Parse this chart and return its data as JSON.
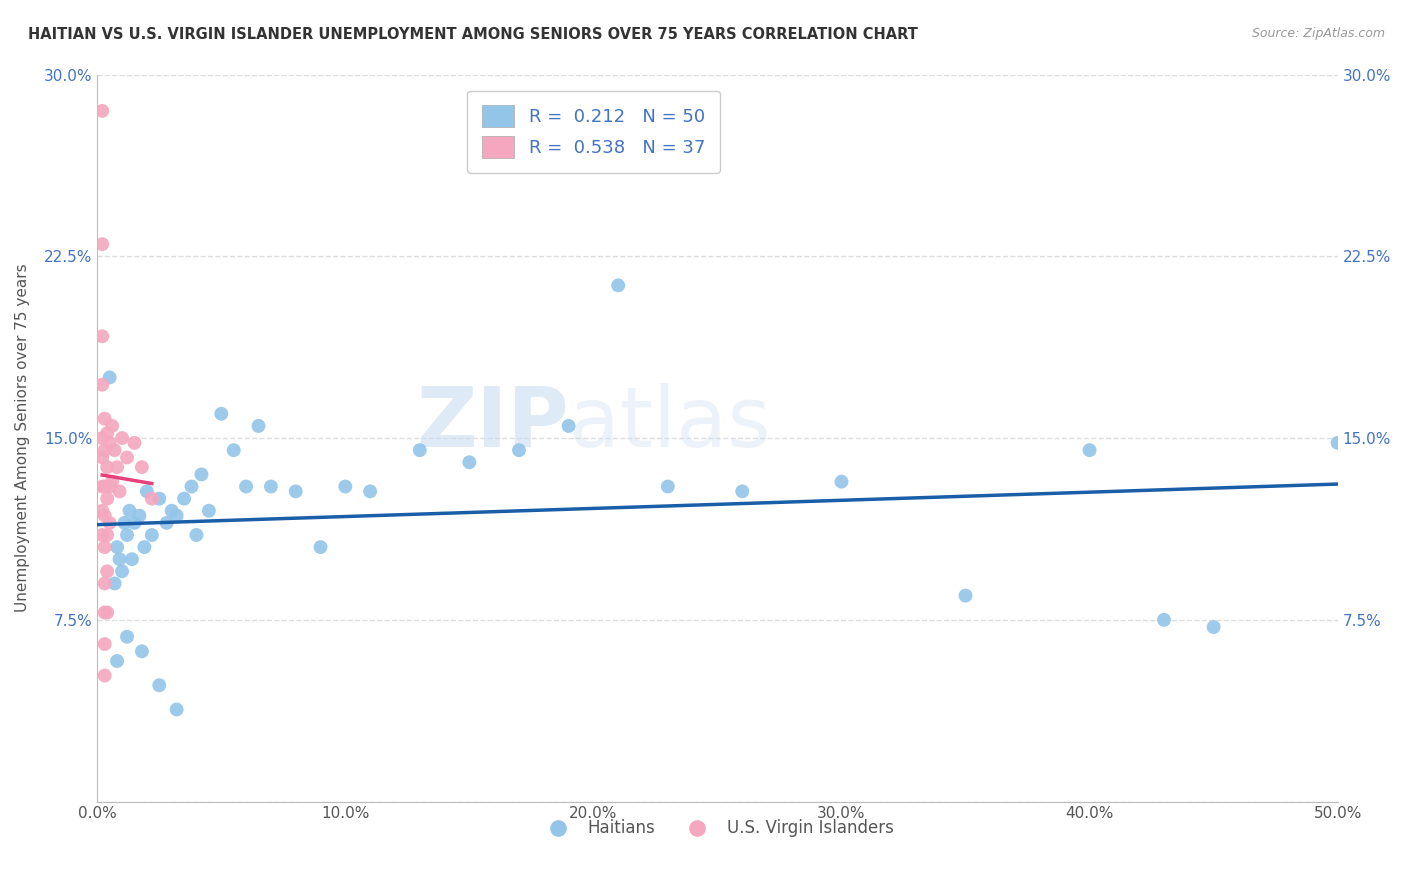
{
  "title": "HAITIAN VS U.S. VIRGIN ISLANDER UNEMPLOYMENT AMONG SENIORS OVER 75 YEARS CORRELATION CHART",
  "source": "Source: ZipAtlas.com",
  "ylabel": "Unemployment Among Seniors over 75 years",
  "xlim": [
    0.0,
    0.5
  ],
  "ylim": [
    0.0,
    0.3
  ],
  "xticks": [
    0.0,
    0.1,
    0.2,
    0.3,
    0.4,
    0.5
  ],
  "yticks": [
    0.0,
    0.075,
    0.15,
    0.225,
    0.3
  ],
  "xtick_labels": [
    "0.0%",
    "10.0%",
    "20.0%",
    "30.0%",
    "40.0%",
    "50.0%"
  ],
  "ytick_labels": [
    "",
    "7.5%",
    "15.0%",
    "22.5%",
    "30.0%"
  ],
  "blue_color": "#92C5E8",
  "pink_color": "#F4A7BE",
  "blue_line_color": "#1A5EA8",
  "pink_line_color": "#E8407A",
  "gray_dash_color": "#BBBBBB",
  "legend_R1": "0.212",
  "legend_N1": "50",
  "legend_R2": "0.538",
  "legend_N2": "37",
  "legend_label1": "Haitians",
  "legend_label2": "U.S. Virgin Islanders",
  "watermark1": "ZIP",
  "watermark2": "atlas",
  "haitians_x": [
    0.005,
    0.007,
    0.008,
    0.009,
    0.01,
    0.011,
    0.012,
    0.013,
    0.014,
    0.015,
    0.017,
    0.019,
    0.02,
    0.022,
    0.025,
    0.028,
    0.03,
    0.032,
    0.035,
    0.038,
    0.04,
    0.042,
    0.045,
    0.05,
    0.055,
    0.06,
    0.065,
    0.07,
    0.08,
    0.09,
    0.1,
    0.11,
    0.13,
    0.15,
    0.17,
    0.19,
    0.21,
    0.23,
    0.26,
    0.3,
    0.35,
    0.4,
    0.43,
    0.45,
    0.5,
    0.008,
    0.012,
    0.018,
    0.025,
    0.032
  ],
  "haitians_y": [
    0.175,
    0.09,
    0.105,
    0.1,
    0.095,
    0.115,
    0.11,
    0.12,
    0.1,
    0.115,
    0.118,
    0.105,
    0.128,
    0.11,
    0.125,
    0.115,
    0.12,
    0.118,
    0.125,
    0.13,
    0.11,
    0.135,
    0.12,
    0.16,
    0.145,
    0.13,
    0.155,
    0.13,
    0.128,
    0.105,
    0.13,
    0.128,
    0.145,
    0.14,
    0.145,
    0.155,
    0.213,
    0.13,
    0.128,
    0.132,
    0.085,
    0.145,
    0.075,
    0.072,
    0.148,
    0.058,
    0.068,
    0.062,
    0.048,
    0.038
  ],
  "virgin_x": [
    0.002,
    0.002,
    0.002,
    0.002,
    0.002,
    0.002,
    0.002,
    0.002,
    0.002,
    0.003,
    0.003,
    0.003,
    0.003,
    0.003,
    0.003,
    0.003,
    0.003,
    0.003,
    0.004,
    0.004,
    0.004,
    0.004,
    0.004,
    0.004,
    0.005,
    0.005,
    0.005,
    0.006,
    0.006,
    0.007,
    0.008,
    0.009,
    0.01,
    0.012,
    0.015,
    0.018,
    0.022
  ],
  "virgin_y": [
    0.285,
    0.23,
    0.192,
    0.172,
    0.15,
    0.142,
    0.13,
    0.12,
    0.11,
    0.158,
    0.145,
    0.13,
    0.118,
    0.105,
    0.09,
    0.078,
    0.065,
    0.052,
    0.152,
    0.138,
    0.125,
    0.11,
    0.095,
    0.078,
    0.148,
    0.13,
    0.115,
    0.155,
    0.132,
    0.145,
    0.138,
    0.128,
    0.15,
    0.142,
    0.148,
    0.138,
    0.125
  ]
}
